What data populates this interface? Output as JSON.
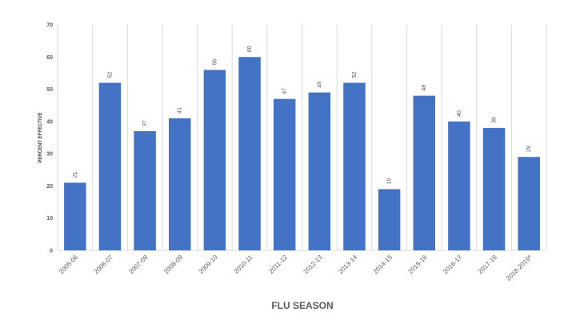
{
  "chart_data": {
    "type": "bar",
    "categories": [
      "2005-06",
      "2006-07",
      "2007-08",
      "2008-09",
      "2009-10",
      "2010-11",
      "2011-12",
      "2012-13",
      "2013-14",
      "2014-15",
      "2015-16",
      "2016-17",
      "2017-18",
      "2018-2019*"
    ],
    "values": [
      21,
      52,
      37,
      41,
      56,
      60,
      47,
      49,
      52,
      19,
      48,
      40,
      38,
      29
    ],
    "xlabel": "FLU SEASON",
    "ylabel": "PERCENT EFFECTIVE",
    "ylim": [
      0,
      70
    ],
    "yticks": [
      0,
      10,
      20,
      30,
      40,
      50,
      60,
      70
    ],
    "grid": "vertical category separators",
    "legend": "none",
    "bar_color": "#4472C4",
    "grid_color": "#D9D9D9"
  }
}
